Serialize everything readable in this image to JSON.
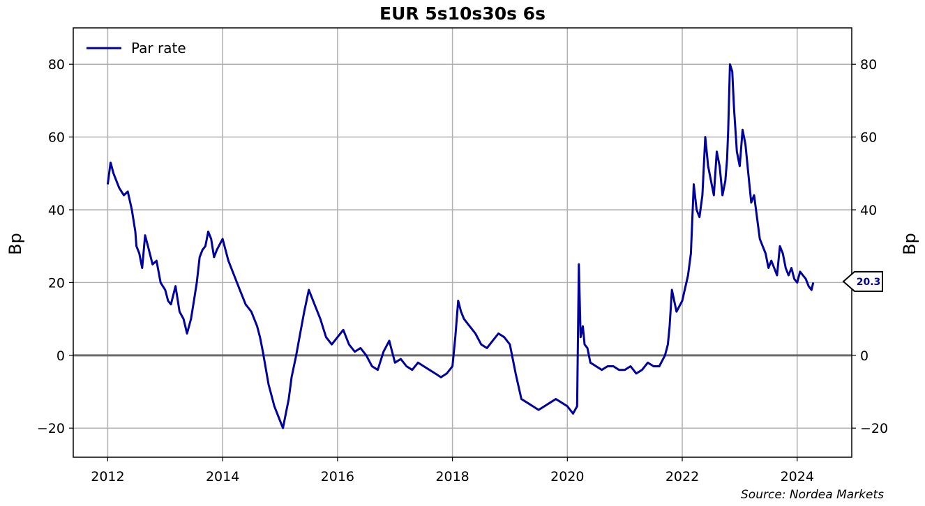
{
  "chart_data": {
    "type": "line",
    "title": "EUR 5s10s30s 6s",
    "ylabel_left": "Bp",
    "ylabel_right": "Bp",
    "xlim": [
      2011.4,
      2024.95
    ],
    "ylim": [
      -28,
      90
    ],
    "x_ticks": [
      2012,
      2014,
      2016,
      2018,
      2020,
      2022,
      2024
    ],
    "y_ticks": [
      -20,
      0,
      20,
      40,
      60,
      80
    ],
    "grid": true,
    "zero_line": true,
    "legend_position": "top-left",
    "last_value_label": "20.3",
    "last_value": 20.3,
    "source": "Source: Nordea Markets",
    "series": [
      {
        "name": "Par rate",
        "color": "#00009c",
        "x": [
          2012.0,
          2012.05,
          2012.1,
          2012.15,
          2012.2,
          2012.28,
          2012.35,
          2012.42,
          2012.48,
          2012.5,
          2012.55,
          2012.6,
          2012.65,
          2012.7,
          2012.78,
          2012.85,
          2012.92,
          2013.0,
          2013.05,
          2013.1,
          2013.18,
          2013.25,
          2013.32,
          2013.38,
          2013.45,
          2013.5,
          2013.55,
          2013.6,
          2013.65,
          2013.7,
          2013.75,
          2013.8,
          2013.85,
          2013.9,
          2014.0,
          2014.1,
          2014.2,
          2014.3,
          2014.4,
          2014.5,
          2014.6,
          2014.65,
          2014.7,
          2014.8,
          2014.9,
          2015.0,
          2015.05,
          2015.15,
          2015.2,
          2015.28,
          2015.35,
          2015.42,
          2015.5,
          2015.6,
          2015.7,
          2015.8,
          2015.9,
          2016.0,
          2016.1,
          2016.2,
          2016.3,
          2016.4,
          2016.5,
          2016.6,
          2016.7,
          2016.8,
          2016.9,
          2017.0,
          2017.1,
          2017.2,
          2017.3,
          2017.4,
          2017.5,
          2017.6,
          2017.7,
          2017.8,
          2017.9,
          2018.0,
          2018.05,
          2018.1,
          2018.15,
          2018.2,
          2018.3,
          2018.4,
          2018.5,
          2018.6,
          2018.7,
          2018.8,
          2018.9,
          2019.0,
          2019.1,
          2019.2,
          2019.3,
          2019.4,
          2019.5,
          2019.6,
          2019.7,
          2019.8,
          2019.9,
          2020.0,
          2020.1,
          2020.17,
          2020.2,
          2020.23,
          2020.27,
          2020.3,
          2020.35,
          2020.4,
          2020.5,
          2020.6,
          2020.7,
          2020.8,
          2020.9,
          2021.0,
          2021.1,
          2021.2,
          2021.3,
          2021.4,
          2021.5,
          2021.6,
          2021.7,
          2021.75,
          2021.78,
          2021.82,
          2021.9,
          2022.0,
          2022.1,
          2022.15,
          2022.2,
          2022.25,
          2022.3,
          2022.35,
          2022.4,
          2022.45,
          2022.5,
          2022.55,
          2022.6,
          2022.65,
          2022.7,
          2022.75,
          2022.78,
          2022.8,
          2022.83,
          2022.87,
          2022.9,
          2022.95,
          2023.0,
          2023.05,
          2023.1,
          2023.15,
          2023.2,
          2023.25,
          2023.3,
          2023.35,
          2023.4,
          2023.45,
          2023.5,
          2023.55,
          2023.6,
          2023.65,
          2023.7,
          2023.75,
          2023.8,
          2023.85,
          2023.9,
          2023.95,
          2024.0,
          2024.05,
          2024.1,
          2024.15,
          2024.2,
          2024.25,
          2024.28
        ],
        "y": [
          47,
          53,
          50,
          48,
          46,
          44,
          45,
          40,
          34,
          30,
          28,
          24,
          33,
          30,
          25,
          26,
          20,
          18,
          15,
          14,
          19,
          12,
          10,
          6,
          10,
          15,
          20,
          27,
          29,
          30,
          34,
          32,
          27,
          29,
          32,
          26,
          22,
          18,
          14,
          12,
          8,
          5,
          1,
          -8,
          -14,
          -18,
          -20,
          -12,
          -6,
          0,
          6,
          12,
          18,
          14,
          10,
          5,
          3,
          5,
          7,
          3,
          1,
          2,
          0,
          -3,
          -4,
          1,
          4,
          -2,
          -1,
          -3,
          -4,
          -2,
          -3,
          -4,
          -5,
          -6,
          -5,
          -3,
          5,
          15,
          12,
          10,
          8,
          6,
          3,
          2,
          4,
          6,
          5,
          3,
          -5,
          -12,
          -13,
          -14,
          -15,
          -14,
          -13,
          -12,
          -13,
          -14,
          -16,
          -14,
          25,
          5,
          8,
          3,
          2,
          -2,
          -3,
          -4,
          -3,
          -3,
          -4,
          -4,
          -3,
          -5,
          -4,
          -2,
          -3,
          -3,
          0,
          3,
          8,
          18,
          12,
          15,
          22,
          28,
          47,
          40,
          38,
          44,
          60,
          52,
          48,
          44,
          56,
          52,
          44,
          48,
          54,
          62,
          80,
          78,
          68,
          56,
          52,
          62,
          58,
          50,
          42,
          44,
          38,
          32,
          30,
          28,
          24,
          26,
          24,
          22,
          30,
          28,
          24,
          22,
          24,
          21,
          20,
          23,
          22,
          21,
          19,
          18,
          20
        ]
      }
    ]
  }
}
